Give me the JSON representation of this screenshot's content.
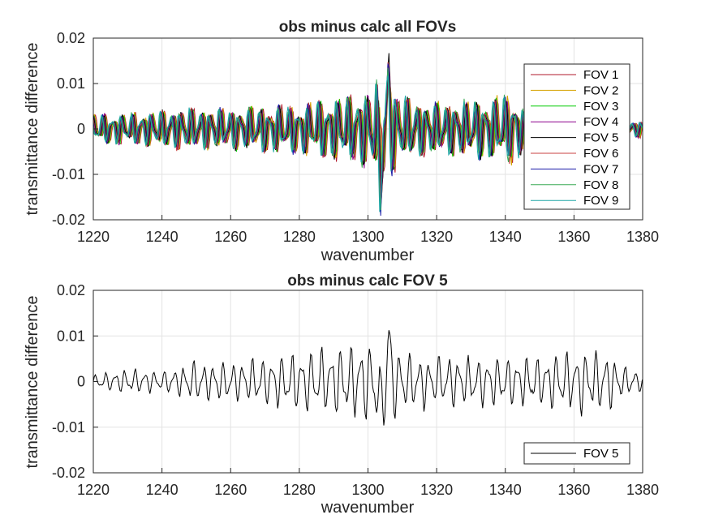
{
  "chart_data": [
    {
      "type": "line",
      "title": "obs minus calc all FOVs",
      "xlabel": "wavenumber",
      "ylabel": "transmittance difference",
      "xlim": [
        1220,
        1380
      ],
      "ylim": [
        -0.02,
        0.02
      ],
      "x_ticks": [
        "1220",
        "1240",
        "1260",
        "1280",
        "1300",
        "1320",
        "1340",
        "1360",
        "1380"
      ],
      "y_ticks": [
        "-0.02",
        "-0.01",
        "0",
        "0.01",
        "0.02"
      ],
      "grid": true,
      "legend_position": "right",
      "x_range_data": [
        1220,
        1380
      ],
      "envelope": {
        "x": [
          1220,
          1230,
          1245,
          1260,
          1280,
          1290,
          1298,
          1302,
          1304,
          1306,
          1310,
          1320,
          1335,
          1343,
          1346,
          1350,
          1360,
          1370,
          1380
        ],
        "amp": [
          0.003,
          0.003,
          0.004,
          0.004,
          0.005,
          0.006,
          0.007,
          0.009,
          0.011,
          0.01,
          0.006,
          0.005,
          0.006,
          0.007,
          0.003,
          0.0,
          0.0,
          0.0,
          0.002
        ]
      },
      "series": [
        {
          "name": "FOV 1",
          "color": "#b2182b"
        },
        {
          "name": "FOV 2",
          "color": "#d6a200"
        },
        {
          "name": "FOV 3",
          "color": "#00cc00"
        },
        {
          "name": "FOV 4",
          "color": "#8b008b"
        },
        {
          "name": "FOV 5",
          "color": "#000000"
        },
        {
          "name": "FOV 6",
          "color": "#c94040"
        },
        {
          "name": "FOV 7",
          "color": "#1a1aa8"
        },
        {
          "name": "FOV 8",
          "color": "#3aaa55"
        },
        {
          "name": "FOV 9",
          "color": "#1aa5a5"
        }
      ]
    },
    {
      "type": "line",
      "title": "obs minus calc FOV 5",
      "xlabel": "wavenumber",
      "ylabel": "transmittance difference",
      "xlim": [
        1220,
        1380
      ],
      "ylim": [
        -0.02,
        0.02
      ],
      "x_ticks": [
        "1220",
        "1240",
        "1260",
        "1280",
        "1300",
        "1320",
        "1340",
        "1360",
        "1380"
      ],
      "y_ticks": [
        "-0.02",
        "-0.01",
        "0",
        "0.01",
        "0.02"
      ],
      "grid": true,
      "legend_position": "bottom-right",
      "x_range_data": [
        1220,
        1380
      ],
      "envelope": {
        "x": [
          1220,
          1230,
          1240,
          1250,
          1260,
          1280,
          1290,
          1298,
          1302,
          1304,
          1306,
          1310,
          1320,
          1335,
          1350,
          1360,
          1368,
          1375,
          1380
        ],
        "amp": [
          0.0015,
          0.0025,
          0.002,
          0.004,
          0.004,
          0.006,
          0.007,
          0.008,
          0.009,
          0.012,
          0.01,
          0.006,
          0.005,
          0.005,
          0.005,
          0.006,
          0.007,
          0.003,
          0.002
        ]
      },
      "series": [
        {
          "name": "FOV 5",
          "color": "#000000"
        }
      ]
    }
  ]
}
